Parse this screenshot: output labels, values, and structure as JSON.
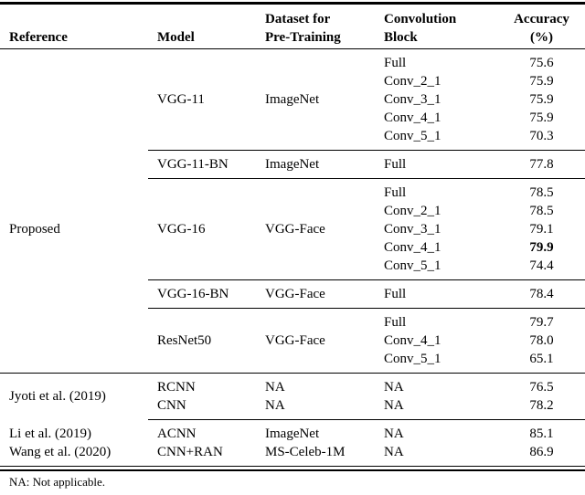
{
  "colors": {
    "background": "#ffffff",
    "text": "#000000",
    "rule": "#000000"
  },
  "table": {
    "columns": {
      "reference": "Reference",
      "model": "Model",
      "dataset_line1": "Dataset for",
      "dataset_line2": "Pre-Training",
      "conv_line1": "Convolution",
      "conv_line2": "Block",
      "accuracy_line1": "Accuracy",
      "accuracy_line2": "(%)"
    },
    "bands": [
      {
        "model": "VGG-11",
        "dataset": "ImageNet",
        "rows": [
          {
            "block": "Full",
            "accuracy": "75.6"
          },
          {
            "block": "Conv_2_1",
            "accuracy": "75.9"
          },
          {
            "block": "Conv_3_1",
            "accuracy": "75.9"
          },
          {
            "block": "Conv_4_1",
            "accuracy": "75.9"
          },
          {
            "block": "Conv_5_1",
            "accuracy": "70.3"
          }
        ],
        "rule": "partial"
      },
      {
        "model": "VGG-11-BN",
        "dataset": "ImageNet",
        "rows": [
          {
            "block": "Full",
            "accuracy": "77.8"
          }
        ],
        "rule": "partial"
      },
      {
        "reference": "Proposed",
        "model": "VGG-16",
        "dataset": "VGG-Face",
        "rows": [
          {
            "block": "Full",
            "accuracy": "78.5"
          },
          {
            "block": "Conv_2_1",
            "accuracy": "78.5"
          },
          {
            "block": "Conv_3_1",
            "accuracy": "79.1"
          },
          {
            "block": "Conv_4_1",
            "accuracy": "79.9",
            "bold": true
          },
          {
            "block": "Conv_5_1",
            "accuracy": "74.4"
          }
        ],
        "rule": "partial"
      },
      {
        "model": "VGG-16-BN",
        "dataset": "VGG-Face",
        "rows": [
          {
            "block": "Full",
            "accuracy": "78.4"
          }
        ],
        "rule": "partial"
      },
      {
        "model": "ResNet50",
        "dataset": "VGG-Face",
        "rows": [
          {
            "block": "Full",
            "accuracy": "79.7"
          },
          {
            "block": "Conv_4_1",
            "accuracy": "78.0"
          },
          {
            "block": "Conv_5_1",
            "accuracy": "65.1"
          }
        ],
        "rule": "full"
      },
      {
        "reference": "Jyoti et al. (2019)",
        "rows": [
          {
            "model": "RCNN",
            "dataset": "NA",
            "block": "NA",
            "accuracy": "76.5"
          },
          {
            "model": "CNN",
            "dataset": "NA",
            "block": "NA",
            "accuracy": "78.2"
          }
        ],
        "rule": "partial"
      },
      {
        "rows": [
          {
            "reference": "Li et al. (2019)",
            "model": "ACNN",
            "dataset": "ImageNet",
            "block": "NA",
            "accuracy": "85.1"
          },
          {
            "reference": "Wang et al. (2020)",
            "model": "CNN+RAN",
            "dataset": "MS-Celeb-1M",
            "block": "NA",
            "accuracy": "86.9"
          }
        ],
        "rule": "double"
      }
    ],
    "footnote": "NA: Not applicable."
  }
}
